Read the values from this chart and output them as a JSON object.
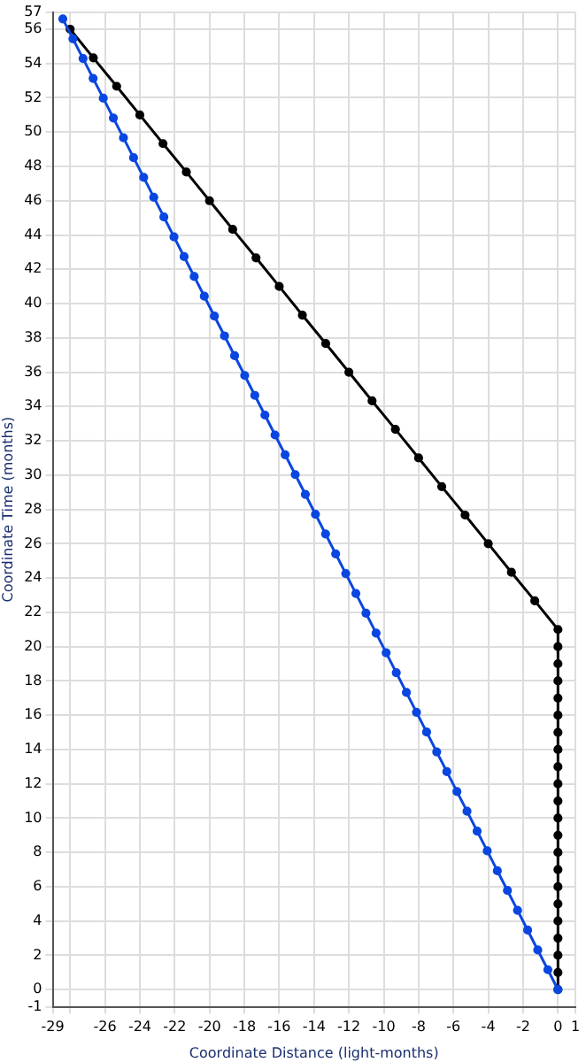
{
  "chart_data": {
    "type": "line",
    "xlabel": "Coordinate Distance (light-months)",
    "ylabel": "Coordinate Time (months)",
    "xlim": [
      -29,
      1
    ],
    "xticks": [
      -29,
      {
        "value": -28,
        "label": null
      },
      -26,
      -24,
      -22,
      -20,
      -18,
      -16,
      -14,
      -12,
      -10,
      -8,
      -6,
      -4,
      -2,
      0,
      1
    ],
    "ylim": [
      -1,
      57
    ],
    "yticks": [
      -1,
      0,
      2,
      4,
      6,
      8,
      10,
      12,
      14,
      16,
      18,
      20,
      22,
      24,
      26,
      28,
      30,
      32,
      34,
      36,
      38,
      40,
      42,
      44,
      46,
      48,
      50,
      52,
      54,
      56,
      57
    ],
    "grid": true,
    "legend": false,
    "marker": "circle",
    "line_style": "solid",
    "series": [
      {
        "color": "#0a46e0",
        "x": [
          0,
          -0.58,
          -1.16,
          -1.74,
          -2.32,
          -2.9,
          -3.48,
          -4.06,
          -4.64,
          -5.22,
          -5.8,
          -6.38,
          -6.96,
          -7.54,
          -8.12,
          -8.7,
          -9.28,
          -9.86,
          -10.44,
          -11.02,
          -11.6,
          -12.18,
          -12.76,
          -13.34,
          -13.92,
          -14.5,
          -15.08,
          -15.66,
          -16.24,
          -16.82,
          -17.4,
          -17.98,
          -18.56,
          -19.14,
          -19.72,
          -20.3,
          -20.88,
          -21.46,
          -22.04,
          -22.62,
          -23.2,
          -23.78,
          -24.36,
          -24.94,
          -25.52,
          -26.1,
          -26.68,
          -27.26,
          -27.84,
          -28.42
        ],
        "values": [
          0,
          1.16,
          2.31,
          3.47,
          4.62,
          5.78,
          6.93,
          8.09,
          9.24,
          10.4,
          11.55,
          12.71,
          13.86,
          15.02,
          16.17,
          17.33,
          18.48,
          19.64,
          20.79,
          21.95,
          23.1,
          24.26,
          25.41,
          26.57,
          27.72,
          28.88,
          30.03,
          31.19,
          32.34,
          33.5,
          34.65,
          35.81,
          36.96,
          38.12,
          39.27,
          40.43,
          41.58,
          42.74,
          43.89,
          45.05,
          46.2,
          47.36,
          48.51,
          49.67,
          50.82,
          51.98,
          53.13,
          54.29,
          55.44,
          56.6
        ]
      },
      {
        "color": "#000000",
        "x": [
          0,
          0,
          0,
          0,
          0,
          0,
          0,
          0,
          0,
          0,
          0,
          0,
          0,
          0,
          0,
          0,
          0,
          0,
          0,
          0,
          0,
          0,
          -1.33,
          -2.67,
          -4,
          -5.33,
          -6.67,
          -8,
          -9.33,
          -10.67,
          -12,
          -13.33,
          -14.67,
          -16,
          -17.33,
          -18.67,
          -20,
          -21.33,
          -22.67,
          -24,
          -25.33,
          -26.67,
          -28
        ],
        "values": [
          0,
          1,
          2,
          3,
          4,
          5,
          6,
          7,
          8,
          9,
          10,
          11,
          12,
          13,
          14,
          15,
          16,
          17,
          18,
          19,
          20,
          21,
          22.67,
          24.33,
          26,
          27.67,
          29.33,
          31,
          32.67,
          34.33,
          36,
          37.67,
          39.33,
          41,
          42.67,
          44.33,
          46,
          47.67,
          49.33,
          51,
          52.67,
          54.33,
          56
        ]
      }
    ]
  }
}
